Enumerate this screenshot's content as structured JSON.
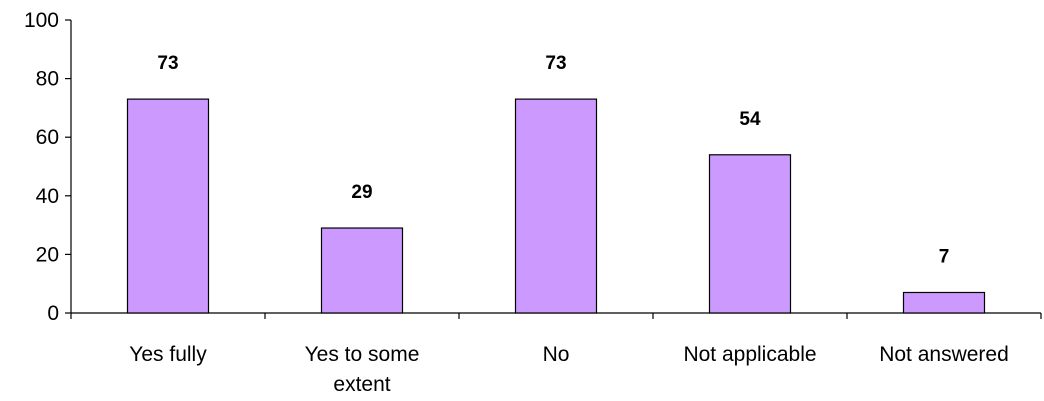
{
  "chart_data": {
    "type": "bar",
    "categories": [
      "Yes fully",
      "Yes to some extent",
      "No",
      "Not applicable",
      "Not answered"
    ],
    "category_lines": [
      [
        "Yes fully"
      ],
      [
        "Yes to some",
        "extent"
      ],
      [
        "No"
      ],
      [
        "Not applicable"
      ],
      [
        "Not answered"
      ]
    ],
    "values": [
      73,
      29,
      73,
      54,
      7
    ],
    "data_labels": [
      "73",
      "29",
      "73",
      "54",
      "7"
    ],
    "yticks": [
      0,
      20,
      40,
      60,
      80,
      100
    ],
    "ytick_labels": [
      "0",
      "20",
      "40",
      "60",
      "80",
      "100"
    ],
    "ylim": [
      0,
      100
    ],
    "title": "",
    "xlabel": "",
    "ylabel": "",
    "grid": false,
    "legend": "none",
    "bar_color": "#cc99ff",
    "bar_border_color": "#000000"
  }
}
